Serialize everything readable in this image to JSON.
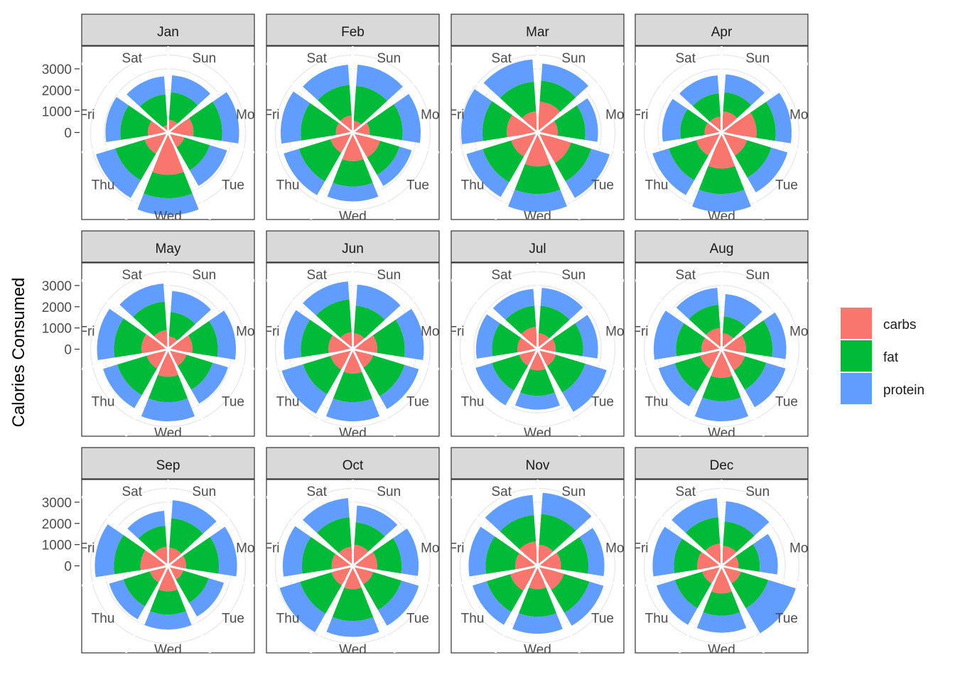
{
  "chart_data": {
    "type": "polar-stacked-bar",
    "ylabel": "Calories Consumed",
    "y_ticks": [
      "3000",
      "2000",
      "1000",
      "0"
    ],
    "grid": true,
    "legend_position": "right",
    "days": [
      "Sun",
      "Mon",
      "Tue",
      "Wed",
      "Thu",
      "Fri",
      "Sat"
    ],
    "series": [
      {
        "name": "carbs",
        "color": "#F8766D"
      },
      {
        "name": "fat",
        "color": "#00BA38"
      },
      {
        "name": "protein",
        "color": "#619CFF"
      }
    ],
    "panels": [
      {
        "month": "Jan",
        "carbs": [
          600,
          1200,
          800,
          2000,
          1150,
          950,
          350
        ],
        "fat": [
          1300,
          1350,
          1250,
          1100,
          1450,
          1300,
          1450
        ],
        "protein": [
          800,
          800,
          850,
          800,
          950,
          700,
          850
        ]
      },
      {
        "month": "Feb",
        "carbs": [
          550,
          800,
          1350,
          1350,
          1100,
          800,
          800
        ],
        "fat": [
          1650,
          1550,
          950,
          1200,
          1550,
          1650,
          1450
        ],
        "protein": [
          1000,
          850,
          600,
          700,
          750,
          950,
          950
        ]
      },
      {
        "month": "Mar",
        "carbs": [
          1450,
          950,
          1650,
          1600,
          1300,
          1450,
          1000
        ],
        "fat": [
          1000,
          1300,
          1000,
          1300,
          1400,
          1150,
          1400
        ],
        "protein": [
          800,
          600,
          900,
          850,
          800,
          1000,
          1050
        ]
      },
      {
        "month": "Apr",
        "carbs": [
          1000,
          1650,
          1250,
          1700,
          1250,
          800,
          750
        ],
        "fat": [
          900,
          900,
          1200,
          1200,
          1350,
          1150,
          1100
        ],
        "protein": [
          850,
          750,
          800,
          850,
          800,
          850,
          850
        ]
      },
      {
        "month": "May",
        "carbs": [
          600,
          1150,
          900,
          1300,
          1050,
          1250,
          900
        ],
        "fat": [
          1150,
          1200,
          1300,
          1200,
          1450,
          1300,
          1350
        ],
        "protein": [
          1000,
          850,
          750,
          900,
          700,
          800,
          850
        ]
      },
      {
        "month": "Jun",
        "carbs": [
          750,
          1150,
          1000,
          1150,
          1100,
          1150,
          800
        ],
        "fat": [
          1300,
          1300,
          1550,
          1350,
          1350,
          1300,
          1550
        ],
        "protein": [
          1000,
          900,
          700,
          900,
          1050,
          800,
          850
        ]
      },
      {
        "month": "Jul",
        "carbs": [
          750,
          850,
          900,
          1000,
          900,
          950,
          1050
        ],
        "fat": [
          1300,
          1300,
          1450,
          1200,
          1350,
          1200,
          1000
        ],
        "protein": [
          850,
          700,
          1050,
          650,
          800,
          750,
          800
        ]
      },
      {
        "month": "Aug",
        "carbs": [
          750,
          1150,
          1150,
          1350,
          1050,
          950,
          1000
        ],
        "fat": [
          800,
          1250,
          1050,
          1100,
          1250,
          1200,
          1100
        ],
        "protein": [
          1050,
          650,
          950,
          950,
          800,
          1050,
          800
        ]
      },
      {
        "month": "Sep",
        "carbs": [
          850,
          850,
          750,
          1200,
          900,
          1300,
          900
        ],
        "fat": [
          1400,
          1550,
          1250,
          1100,
          1300,
          1250,
          1000
        ],
        "protein": [
          850,
          850,
          750,
          700,
          700,
          900,
          700
        ]
      },
      {
        "month": "Oct",
        "carbs": [
          1000,
          1150,
          1000,
          1100,
          1050,
          1000,
          900
        ],
        "fat": [
          1050,
          1150,
          1400,
          1500,
          1550,
          1400,
          1400
        ],
        "protein": [
          800,
          800,
          850,
          750,
          1000,
          900,
          900
        ]
      },
      {
        "month": "Nov",
        "carbs": [
          1000,
          1100,
          1300,
          1100,
          1350,
          1050,
          1150
        ],
        "fat": [
          1450,
          1300,
          1250,
          1300,
          1150,
          1400,
          1250
        ],
        "protein": [
          1000,
          750,
          700,
          800,
          700,
          800,
          950
        ]
      },
      {
        "month": "Dec",
        "carbs": [
          950,
          800,
          950,
          1300,
          950,
          1150,
          1050
        ],
        "fat": [
          1150,
          1000,
          1350,
          1050,
          1350,
          1100,
          1250
        ],
        "protein": [
          950,
          850,
          1350,
          800,
          900,
          1000,
          900
        ]
      }
    ]
  }
}
